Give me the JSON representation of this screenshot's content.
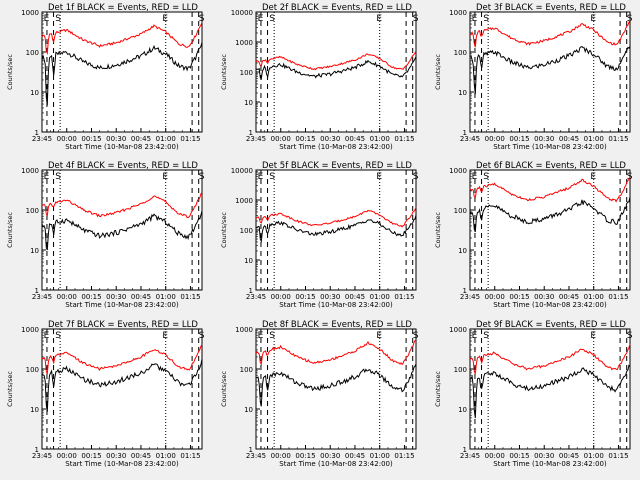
{
  "chart_data": [
    {
      "type": "line",
      "title": "Det 1f BLACK = Events, RED = LLD",
      "xlabel": "Start Time (10-Mar-08 23:42:00)",
      "ylabel": "Counts/sec",
      "yscale": "log",
      "ylim": [
        1,
        1000
      ],
      "y_ticks": [
        "1",
        "10",
        "100",
        "1000"
      ],
      "x_ticks": [
        "23:45",
        "00:00",
        "00:15",
        "00:30",
        "00:45",
        "01:00",
        "01:15"
      ],
      "series": [
        {
          "color": "#000000"
        },
        {
          "color": "#ff0000"
        }
      ],
      "markers": [
        "E",
        "S",
        "E",
        "S"
      ]
    },
    {
      "type": "line",
      "title": "Det 2f BLACK = Events, RED = LLD",
      "xlabel": "Start Time (10-Mar-08 23:42:00)",
      "ylabel": "Counts/sec",
      "yscale": "log",
      "ylim": [
        1,
        10000
      ],
      "y_ticks": [
        "1",
        "10",
        "100",
        "1000",
        "10000"
      ],
      "x_ticks": [
        "23:45",
        "00:00",
        "00:15",
        "00:30",
        "00:45",
        "01:00",
        "01:15"
      ],
      "series": [
        {
          "color": "#000000"
        },
        {
          "color": "#ff0000"
        }
      ],
      "markers": [
        "E",
        "S",
        "E",
        "S"
      ]
    },
    {
      "type": "line",
      "title": "Det 3f BLACK = Events, RED = LLD",
      "xlabel": "Start Time (10-Mar-08 23:42:00)",
      "ylabel": "Counts/sec",
      "yscale": "log",
      "ylim": [
        1,
        1000
      ],
      "y_ticks": [
        "1",
        "10",
        "100",
        "1000"
      ],
      "x_ticks": [
        "23:45",
        "00:00",
        "00:15",
        "00:30",
        "00:45",
        "01:00",
        "01:15"
      ],
      "series": [
        {
          "color": "#000000"
        },
        {
          "color": "#ff0000"
        }
      ],
      "markers": [
        "E",
        "S",
        "E",
        "S"
      ]
    },
    {
      "type": "line",
      "title": "Det 4f BLACK = Events, RED = LLD",
      "xlabel": "Start Time (10-Mar-08 23:42:00)",
      "ylabel": "Counts/sec",
      "yscale": "log",
      "ylim": [
        1,
        1000
      ],
      "y_ticks": [
        "1",
        "10",
        "100",
        "1000"
      ],
      "x_ticks": [
        "23:45",
        "00:00",
        "00:15",
        "00:30",
        "00:45",
        "01:00",
        "01:15"
      ],
      "series": [
        {
          "color": "#000000"
        },
        {
          "color": "#ff0000"
        }
      ],
      "markers": [
        "E",
        "S",
        "E",
        "S"
      ]
    },
    {
      "type": "line",
      "title": "Det 5f BLACK = Events, RED = LLD",
      "xlabel": "Start Time (10-Mar-08 23:42:00)",
      "ylabel": "Counts/sec",
      "yscale": "log",
      "ylim": [
        1,
        10000
      ],
      "y_ticks": [
        "1",
        "10",
        "100",
        "1000",
        "10000"
      ],
      "x_ticks": [
        "23:45",
        "00:00",
        "00:15",
        "00:30",
        "00:45",
        "01:00",
        "01:15"
      ],
      "series": [
        {
          "color": "#000000"
        },
        {
          "color": "#ff0000"
        }
      ],
      "markers": [
        "E",
        "S",
        "E",
        "S"
      ]
    },
    {
      "type": "line",
      "title": "Det 6f BLACK = Events, RED = LLD",
      "xlabel": "Start Time (10-Mar-08 23:42:00)",
      "ylabel": "Counts/sec",
      "yscale": "log",
      "ylim": [
        1,
        1000
      ],
      "y_ticks": [
        "1",
        "10",
        "100",
        "1000"
      ],
      "x_ticks": [
        "23:45",
        "00:00",
        "00:15",
        "00:30",
        "00:45",
        "01:00",
        "01:15"
      ],
      "series": [
        {
          "color": "#000000"
        },
        {
          "color": "#ff0000"
        }
      ],
      "markers": [
        "E",
        "S",
        "E",
        "S"
      ]
    },
    {
      "type": "line",
      "title": "Det 7f BLACK = Events, RED = LLD",
      "xlabel": "Start Time (10-Mar-08 23:42:00)",
      "ylabel": "Counts/sec",
      "yscale": "log",
      "ylim": [
        1,
        1000
      ],
      "y_ticks": [
        "1",
        "10",
        "100",
        "1000"
      ],
      "x_ticks": [
        "23:45",
        "00:00",
        "00:15",
        "00:30",
        "00:45",
        "01:00",
        "01:15"
      ],
      "series": [
        {
          "color": "#000000"
        },
        {
          "color": "#ff0000"
        }
      ],
      "markers": [
        "E",
        "S",
        "E",
        "S"
      ]
    },
    {
      "type": "line",
      "title": "Det 8f BLACK = Events, RED = LLD",
      "xlabel": "Start Time (10-Mar-08 23:42:00)",
      "ylabel": "Counts/sec",
      "yscale": "log",
      "ylim": [
        1,
        1000
      ],
      "y_ticks": [
        "1",
        "10",
        "100",
        "1000"
      ],
      "x_ticks": [
        "23:45",
        "00:00",
        "00:15",
        "00:30",
        "00:45",
        "01:00",
        "01:15"
      ],
      "series": [
        {
          "color": "#000000"
        },
        {
          "color": "#ff0000"
        }
      ],
      "markers": [
        "E",
        "S",
        "E",
        "S"
      ]
    },
    {
      "type": "line",
      "title": "Det 9f BLACK = Events, RED = LLD",
      "xlabel": "Start Time (10-Mar-08 23:42:00)",
      "ylabel": "Counts/sec",
      "yscale": "log",
      "ylim": [
        1,
        1000
      ],
      "y_ticks": [
        "1",
        "10",
        "100",
        "1000"
      ],
      "x_ticks": [
        "23:45",
        "00:00",
        "00:15",
        "00:30",
        "00:45",
        "01:00",
        "01:15"
      ],
      "series": [
        {
          "color": "#000000"
        },
        {
          "color": "#ff0000"
        }
      ],
      "markers": [
        "E",
        "S",
        "E",
        "S"
      ]
    }
  ]
}
